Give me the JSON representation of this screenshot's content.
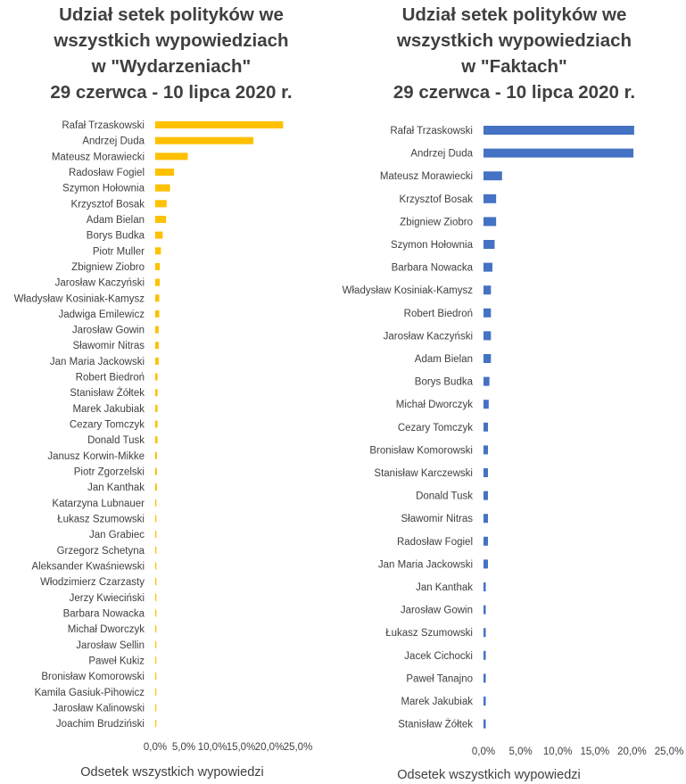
{
  "chart_data": [
    {
      "type": "bar",
      "orientation": "horizontal",
      "title": [
        "Udział setek polityków we",
        "wszystkich wypowiedziach",
        "w \"Wydarzeniach\"",
        "29 czerwca - 10 lipca 2020 r."
      ],
      "xlabel": "Odsetek wszystkich wypowiedzi",
      "ylabel": "",
      "xlim": [
        0,
        25
      ],
      "xticks": [
        "0,0%",
        "5,0%",
        "10,0%",
        "15,0%",
        "20,0%",
        "25,0%"
      ],
      "grid": false,
      "legend": "none",
      "color": "#FFC000",
      "categories": [
        "Rafał Trzaskowski",
        "Andrzej Duda",
        "Mateusz Morawiecki",
        "Radosław Fogiel",
        "Szymon Hołownia",
        "Krzysztof Bosak",
        "Adam Bielan",
        "Borys Budka",
        "Piotr Muller",
        "Zbigniew Ziobro",
        "Jarosław Kaczyński",
        "Władysław Kosiniak-Kamysz",
        "Jadwiga Emilewicz",
        "Jarosław Gowin",
        "Sławomir Nitras",
        "Jan Maria Jackowski",
        "Robert Biedroń",
        "Stanisław Żółtek",
        "Marek Jakubiak",
        "Cezary Tomczyk",
        "Donald Tusk",
        "Janusz Korwin-Mikke",
        "Piotr Zgorzelski",
        "Jan Kanthak",
        "Katarzyna Lubnauer",
        "Łukasz Szumowski",
        "Jan Grabiec",
        "Grzegorz Schetyna",
        "Aleksander Kwaśniewski",
        "Włodzimierz Czarzasty",
        "Jerzy Kwieciński",
        "Barbara Nowacka",
        "Michał Dworczyk",
        "Jarosław Sellin",
        "Paweł Kukiz",
        "Bronisław Komorowski",
        "Kamila Gasiuk-Pihowicz",
        "Jarosław Kalinowski",
        "Joachim Brudziński"
      ],
      "values": [
        22.4,
        17.2,
        5.7,
        3.3,
        2.6,
        2.0,
        1.9,
        1.3,
        1.0,
        0.8,
        0.8,
        0.7,
        0.7,
        0.6,
        0.6,
        0.6,
        0.4,
        0.4,
        0.4,
        0.4,
        0.4,
        0.3,
        0.3,
        0.3,
        0.2,
        0.2,
        0.2,
        0.2,
        0.2,
        0.2,
        0.2,
        0.2,
        0.2,
        0.1,
        0.1,
        0.1,
        0.1,
        0.1,
        0.1
      ]
    },
    {
      "type": "bar",
      "orientation": "horizontal",
      "title": [
        "Udział setek polityków we",
        "wszystkich wypowiedziach",
        "w \"Faktach\"",
        "29 czerwca - 10 lipca 2020 r."
      ],
      "xlabel": "Odsetek wszystkich wypowiedzi",
      "ylabel": "",
      "xlim": [
        0,
        25
      ],
      "xticks": [
        "0,0%",
        "5,0%",
        "10,0%",
        "15,0%",
        "20,0%",
        "25,0%"
      ],
      "grid": false,
      "legend": "none",
      "color": "#4472C4",
      "categories": [
        "Rafał Trzaskowski",
        "Andrzej Duda",
        "Mateusz Morawiecki",
        "Krzysztof Bosak",
        "Zbigniew Ziobro",
        "Szymon Hołownia",
        "Barbara Nowacka",
        "Władysław Kosiniak-Kamysz",
        "Robert Biedroń",
        "Jarosław Kaczyński",
        "Adam Bielan",
        "Borys Budka",
        "Michał Dworczyk",
        "Cezary Tomczyk",
        "Bronisław Komorowski",
        "Stanisław Karczewski",
        "Donald Tusk",
        "Sławomir Nitras",
        "Radosław Fogiel",
        "Jan Maria Jackowski",
        "Jan Kanthak",
        "Jarosław Gowin",
        "Łukasz Szumowski",
        "Jacek Cichocki",
        "Paweł Tanajno",
        "Marek Jakubiak",
        "Stanisław Żółtek"
      ],
      "values": [
        20.3,
        20.2,
        2.5,
        1.7,
        1.7,
        1.5,
        1.2,
        1.0,
        1.0,
        1.0,
        1.0,
        0.8,
        0.7,
        0.6,
        0.6,
        0.6,
        0.6,
        0.6,
        0.6,
        0.6,
        0.3,
        0.3,
        0.3,
        0.3,
        0.3,
        0.3,
        0.3
      ]
    }
  ]
}
